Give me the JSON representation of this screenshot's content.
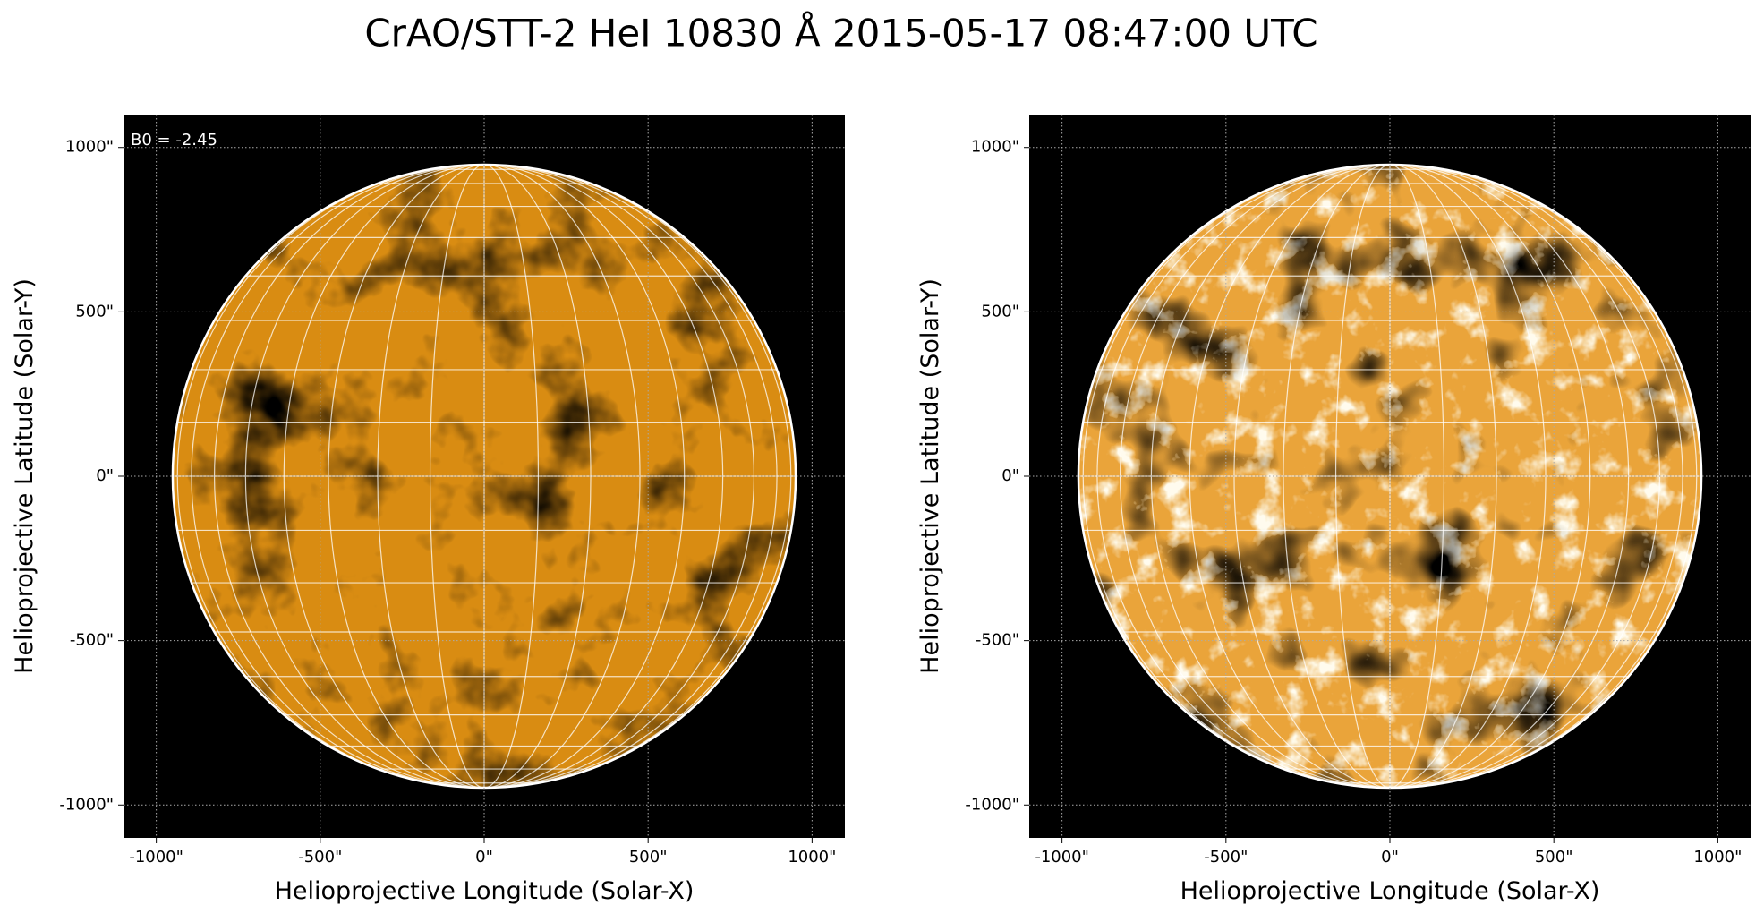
{
  "title": "CrAO/STT-2 HeI 10830 Å 2015-05-17 08:47:00 UTC",
  "chart_data": [
    {
      "type": "image",
      "xlabel": "Helioprojective Longitude (Solar-X)",
      "ylabel": "Helioprojective Latitude (Solar-Y)",
      "annotation": "B0 = -2.45",
      "color": "#d98c12",
      "xlim": [
        -1100,
        1100
      ],
      "ylim": [
        -1100,
        1100
      ],
      "xticks": [
        {
          "value": -1000,
          "label": "-1000\""
        },
        {
          "value": -500,
          "label": "-500\""
        },
        {
          "value": 0,
          "label": "0\""
        },
        {
          "value": 500,
          "label": "500\""
        },
        {
          "value": 1000,
          "label": "1000\""
        }
      ],
      "yticks": [
        {
          "value": -1000,
          "label": "-1000\""
        },
        {
          "value": -500,
          "label": "-500\""
        },
        {
          "value": 0,
          "label": "0\""
        },
        {
          "value": 500,
          "label": "500\""
        },
        {
          "value": 1000,
          "label": "1000\""
        }
      ]
    },
    {
      "type": "image",
      "xlabel": "Helioprojective Longitude (Solar-X)",
      "ylabel": "Helioprojective Latitude (Solar-Y)",
      "color": "#eaa43a",
      "xlim": [
        -1100,
        1100
      ],
      "ylim": [
        -1100,
        1100
      ],
      "xticks": [
        {
          "value": -1000,
          "label": "-1000\""
        },
        {
          "value": -500,
          "label": "-500\""
        },
        {
          "value": 0,
          "label": "0\""
        },
        {
          "value": 500,
          "label": "500\""
        },
        {
          "value": 1000,
          "label": "1000\""
        }
      ],
      "yticks": [
        {
          "value": -1000,
          "label": "-1000\""
        },
        {
          "value": -500,
          "label": "-500\""
        },
        {
          "value": 0,
          "label": "0\""
        },
        {
          "value": 500,
          "label": "500\""
        },
        {
          "value": 1000,
          "label": "1000\""
        }
      ]
    }
  ]
}
